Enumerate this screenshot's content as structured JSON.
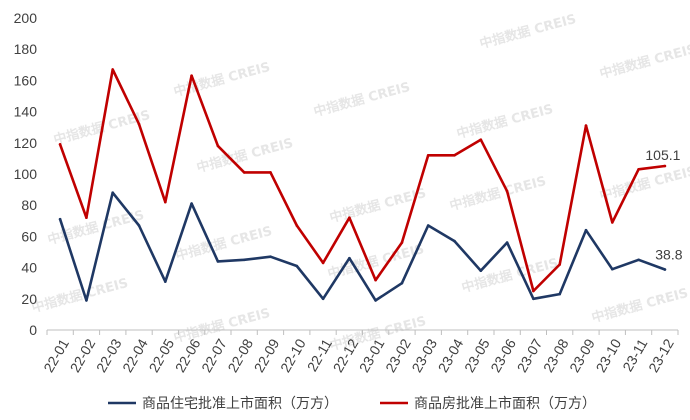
{
  "chart_data": {
    "type": "line",
    "categories": [
      "22-01",
      "22-02",
      "22-03",
      "22-04",
      "22-05",
      "22-06",
      "22-07",
      "22-08",
      "22-09",
      "22-10",
      "22-11",
      "22-12",
      "23-01",
      "23-02",
      "23-03",
      "23-04",
      "23-05",
      "23-06",
      "23-07",
      "23-08",
      "23-09",
      "23-10",
      "23-11",
      "23-12"
    ],
    "series": [
      {
        "name": "商品住宅批准上市面积（万方）",
        "color": "#1f3864",
        "values": [
          71,
          19,
          88,
          67,
          31,
          81,
          44,
          45,
          47,
          41,
          20,
          46,
          19,
          30,
          67,
          57,
          38,
          56,
          20,
          23,
          64,
          39,
          45,
          38.8
        ]
      },
      {
        "name": "商品房批准上市面积（万方）",
        "color": "#c00000",
        "values": [
          119,
          72,
          167,
          132,
          82,
          163,
          118,
          101,
          101,
          67,
          43,
          72,
          32,
          56,
          112,
          112,
          122,
          89,
          25,
          42,
          131,
          69,
          103,
          105.1
        ]
      }
    ],
    "ylim": [
      0,
      200
    ],
    "yticks": [
      0,
      20,
      40,
      60,
      80,
      100,
      120,
      140,
      160,
      180,
      200
    ],
    "data_labels": [
      {
        "series": "商品房批准上市面积（万方）",
        "category": "23-12",
        "text": "105.1"
      },
      {
        "series": "商品住宅批准上市面积（万方）",
        "category": "23-12",
        "text": "38.8"
      }
    ],
    "legend": "bottom",
    "grid": false
  },
  "watermark": "中指数据 CREIS"
}
